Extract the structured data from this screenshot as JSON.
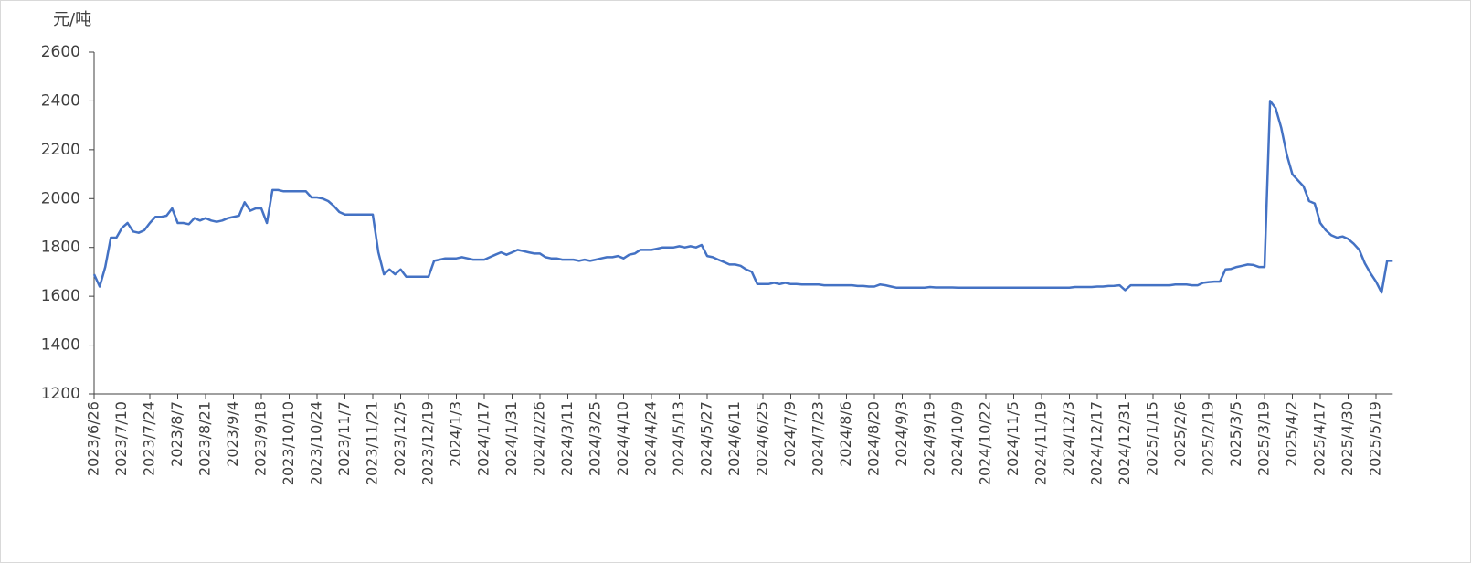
{
  "chart_data": {
    "type": "line",
    "y_label": "元/吨",
    "categories": [
      "2023/6/26",
      null,
      null,
      null,
      null,
      "2023/7/10",
      null,
      null,
      null,
      null,
      "2023/7/24",
      null,
      null,
      null,
      null,
      "2023/8/7",
      null,
      null,
      null,
      null,
      "2023/8/21",
      null,
      null,
      null,
      null,
      "2023/9/4",
      null,
      null,
      null,
      null,
      "2023/9/18",
      null,
      null,
      null,
      null,
      "2023/10/10",
      null,
      null,
      null,
      null,
      "2023/10/24",
      null,
      null,
      null,
      null,
      "2023/11/7",
      null,
      null,
      null,
      null,
      "2023/11/21",
      null,
      null,
      null,
      null,
      "2023/12/5",
      null,
      null,
      null,
      null,
      "2023/12/19",
      null,
      null,
      null,
      null,
      "2024/1/3",
      null,
      null,
      null,
      null,
      "2024/1/17",
      null,
      null,
      null,
      null,
      "2024/1/31",
      null,
      null,
      null,
      null,
      "2024/2/26",
      null,
      null,
      null,
      null,
      "2024/3/11",
      null,
      null,
      null,
      null,
      "2024/3/25",
      null,
      null,
      null,
      null,
      "2024/4/10",
      null,
      null,
      null,
      null,
      "2024/4/24",
      null,
      null,
      null,
      null,
      "2024/5/13",
      null,
      null,
      null,
      null,
      "2024/5/27",
      null,
      null,
      null,
      null,
      "2024/6/11",
      null,
      null,
      null,
      null,
      "2024/6/25",
      null,
      null,
      null,
      null,
      "2024/7/9",
      null,
      null,
      null,
      null,
      "2024/7/23",
      null,
      null,
      null,
      null,
      "2024/8/6",
      null,
      null,
      null,
      null,
      "2024/8/20",
      null,
      null,
      null,
      null,
      "2024/9/3",
      null,
      null,
      null,
      null,
      "2024/9/19",
      null,
      null,
      null,
      null,
      "2024/10/9",
      null,
      null,
      null,
      null,
      "2024/10/22",
      null,
      null,
      null,
      null,
      "2024/11/5",
      null,
      null,
      null,
      null,
      "2024/11/19",
      null,
      null,
      null,
      null,
      "2024/12/3",
      null,
      null,
      null,
      null,
      "2024/12/17",
      null,
      null,
      null,
      null,
      "2024/12/31",
      null,
      null,
      null,
      null,
      "2025/1/15",
      null,
      null,
      null,
      null,
      "2025/2/6",
      null,
      null,
      null,
      null,
      "2025/2/19",
      null,
      null,
      null,
      null,
      "2025/3/5",
      null,
      null,
      null,
      null,
      "2025/3/19",
      null,
      null,
      null,
      null,
      "2025/4/2",
      null,
      null,
      null,
      null,
      "2025/4/17",
      null,
      null,
      null,
      null,
      "2025/4/30",
      null,
      null,
      null,
      null,
      "2025/5/19",
      null,
      null,
      null
    ],
    "series": [
      {
        "color": "#4472c4",
        "values": [
          1690,
          1640,
          1720,
          1840,
          1840,
          1880,
          1900,
          1865,
          1860,
          1870,
          1900,
          1925,
          1925,
          1930,
          1960,
          1900,
          1900,
          1895,
          1920,
          1910,
          1920,
          1910,
          1905,
          1910,
          1920,
          1925,
          1930,
          1985,
          1950,
          1960,
          1960,
          1900,
          2035,
          2035,
          2030,
          2030,
          2030,
          2030,
          2030,
          2005,
          2005,
          2000,
          1990,
          1970,
          1945,
          1935,
          1935,
          1935,
          1935,
          1935,
          1935,
          1780,
          1690,
          1710,
          1690,
          1710,
          1680,
          1680,
          1680,
          1680,
          1680,
          1745,
          1750,
          1755,
          1755,
          1755,
          1760,
          1755,
          1750,
          1750,
          1750,
          1760,
          1770,
          1780,
          1770,
          1780,
          1790,
          1785,
          1780,
          1775,
          1775,
          1760,
          1755,
          1755,
          1750,
          1750,
          1750,
          1745,
          1750,
          1745,
          1750,
          1755,
          1760,
          1760,
          1765,
          1755,
          1770,
          1775,
          1790,
          1790,
          1790,
          1795,
          1800,
          1800,
          1800,
          1805,
          1800,
          1805,
          1800,
          1810,
          1765,
          1760,
          1750,
          1740,
          1730,
          1730,
          1725,
          1710,
          1700,
          1650,
          1650,
          1650,
          1655,
          1650,
          1655,
          1650,
          1650,
          1648,
          1648,
          1648,
          1648,
          1645,
          1645,
          1645,
          1645,
          1645,
          1645,
          1642,
          1642,
          1640,
          1640,
          1648,
          1645,
          1640,
          1635,
          1635,
          1635,
          1635,
          1635,
          1635,
          1638,
          1636,
          1636,
          1636,
          1636,
          1635,
          1635,
          1635,
          1635,
          1635,
          1635,
          1635,
          1635,
          1635,
          1635,
          1635,
          1635,
          1635,
          1635,
          1635,
          1635,
          1635,
          1635,
          1635,
          1635,
          1635,
          1638,
          1638,
          1638,
          1638,
          1640,
          1640,
          1642,
          1643,
          1645,
          1625,
          1645,
          1645,
          1645,
          1645,
          1645,
          1645,
          1645,
          1645,
          1648,
          1648,
          1648,
          1645,
          1645,
          1655,
          1658,
          1660,
          1660,
          1710,
          1712,
          1720,
          1725,
          1730,
          1728,
          1720,
          1720,
          2400,
          2370,
          2290,
          2180,
          2100,
          2075,
          2050,
          1990,
          1980,
          1900,
          1870,
          1850,
          1840,
          1845,
          1835,
          1815,
          1790,
          1735,
          1695,
          1660,
          1615,
          1745,
          1745
        ]
      }
    ],
    "ylim": [
      1200,
      2600
    ],
    "yticks": [
      1200,
      1400,
      1600,
      1800,
      2000,
      2200,
      2400,
      2600
    ],
    "grid": false
  }
}
